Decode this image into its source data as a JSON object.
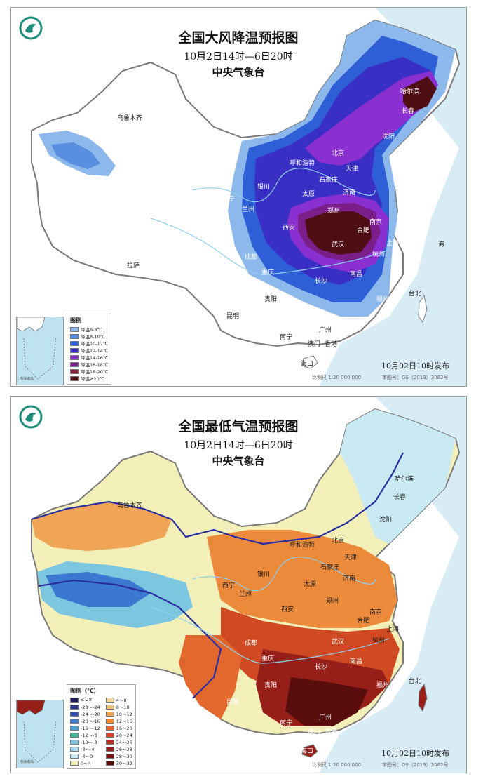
{
  "top": {
    "title": "全国大风降温预报图",
    "subtitle": "10月2日14时—6日20时",
    "org": "中央气象台",
    "publish": "10月02日10时发布",
    "scale_text": "比例尺 1:20 000 000",
    "review_no": "审图号：GS（2019）3082号",
    "legend_title": "图例",
    "legend": [
      {
        "label": "降温6-8℃",
        "color": "#8cb8ec"
      },
      {
        "label": "降温8-10℃",
        "color": "#5a8fe0"
      },
      {
        "label": "降温10-12℃",
        "color": "#2f5fd6"
      },
      {
        "label": "降温12-14℃",
        "color": "#3a2fc4"
      },
      {
        "label": "降温14-16℃",
        "color": "#8a2fd0"
      },
      {
        "label": "降温16-18℃",
        "color": "#7a1f8a"
      },
      {
        "label": "降温18-20℃",
        "color": "#8a1e3c"
      },
      {
        "label": "降温≥20℃",
        "color": "#4e0e14"
      }
    ],
    "cities": [
      {
        "name": "乌鲁木齐"
      },
      {
        "name": "拉萨"
      },
      {
        "name": "西宁"
      },
      {
        "name": "兰州"
      },
      {
        "name": "银川"
      },
      {
        "name": "呼和浩特"
      },
      {
        "name": "北京"
      },
      {
        "name": "天津"
      },
      {
        "name": "石家庄"
      },
      {
        "name": "太原"
      },
      {
        "name": "济南"
      },
      {
        "name": "郑州"
      },
      {
        "name": "西安"
      },
      {
        "name": "成都"
      },
      {
        "name": "重庆"
      },
      {
        "name": "贵阳"
      },
      {
        "name": "昆明"
      },
      {
        "name": "南宁"
      },
      {
        "name": "广州"
      },
      {
        "name": "澳门"
      },
      {
        "name": "香港"
      },
      {
        "name": "海口"
      },
      {
        "name": "长沙"
      },
      {
        "name": "南昌"
      },
      {
        "name": "武汉"
      },
      {
        "name": "合肥"
      },
      {
        "name": "南京"
      },
      {
        "name": "上海"
      },
      {
        "name": "杭州"
      },
      {
        "name": "福州"
      },
      {
        "name": "台北"
      },
      {
        "name": "沈阳"
      },
      {
        "name": "长春"
      },
      {
        "name": "哈尔滨"
      },
      {
        "name": "海"
      },
      {
        "name": "南海诸岛"
      }
    ]
  },
  "bottom": {
    "title": "全国最低气温预报图",
    "subtitle": "10月2日14时—6日20时",
    "org": "中央气象台",
    "publish": "10月02日10时发布",
    "scale_text": "比例尺 1:20 000 000",
    "review_no": "审图号：GS（2019）3082号",
    "legend_title": "图例（℃）",
    "legend_left": [
      {
        "label": "≤-28",
        "color": "#1e1a5e"
      },
      {
        "label": "-28～-24",
        "color": "#2a2f8a"
      },
      {
        "label": "-24～-20",
        "color": "#2e50b8"
      },
      {
        "label": "-20～-16",
        "color": "#3b78d0"
      },
      {
        "label": "-16～-12",
        "color": "#4aa0d8"
      },
      {
        "label": "-12～-8",
        "color": "#3fb89a"
      },
      {
        "label": "-10～-8",
        "color": "#7cc6e0"
      },
      {
        "label": "-8～-4",
        "color": "#a8d8ee"
      },
      {
        "label": "-4～0",
        "color": "#c9e9f3"
      },
      {
        "label": "0～4",
        "color": "#f3efb9"
      }
    ],
    "legend_right": [
      {
        "label": "4～8",
        "color": "#f6d79a"
      },
      {
        "label": "8～10",
        "color": "#f3c27a"
      },
      {
        "label": "10～12",
        "color": "#f0a455"
      },
      {
        "label": "12～16",
        "color": "#ec8a3c"
      },
      {
        "label": "16～20",
        "color": "#e2682d"
      },
      {
        "label": "20～24",
        "color": "#cf4a22"
      },
      {
        "label": "24～26",
        "color": "#b42e1e"
      },
      {
        "label": "26～28",
        "color": "#961f19"
      },
      {
        "label": "28～30",
        "color": "#7a1414"
      },
      {
        "label": "30～32",
        "color": "#5a0d0d"
      }
    ],
    "cities": [
      {
        "name": "乌鲁木齐"
      },
      {
        "name": "哈尔滨"
      },
      {
        "name": "长春"
      },
      {
        "name": "沈阳"
      },
      {
        "name": "呼和浩特"
      },
      {
        "name": "北京"
      },
      {
        "name": "天津"
      },
      {
        "name": "石家庄"
      },
      {
        "name": "太原"
      },
      {
        "name": "济南"
      },
      {
        "name": "银川"
      },
      {
        "name": "西宁"
      },
      {
        "name": "兰州"
      },
      {
        "name": "西安"
      },
      {
        "name": "郑州"
      },
      {
        "name": "合肥"
      },
      {
        "name": "南京"
      },
      {
        "name": "上海"
      },
      {
        "name": "杭州"
      },
      {
        "name": "武汉"
      },
      {
        "name": "成都"
      },
      {
        "name": "重庆"
      },
      {
        "name": "长沙"
      },
      {
        "name": "南昌"
      },
      {
        "name": "贵阳"
      },
      {
        "name": "昆明"
      },
      {
        "name": "南宁"
      },
      {
        "name": "广州"
      },
      {
        "name": "澳门"
      },
      {
        "name": "香港"
      },
      {
        "name": "海口"
      },
      {
        "name": "福州"
      },
      {
        "name": "台北"
      },
      {
        "name": "南海诸岛"
      }
    ]
  }
}
